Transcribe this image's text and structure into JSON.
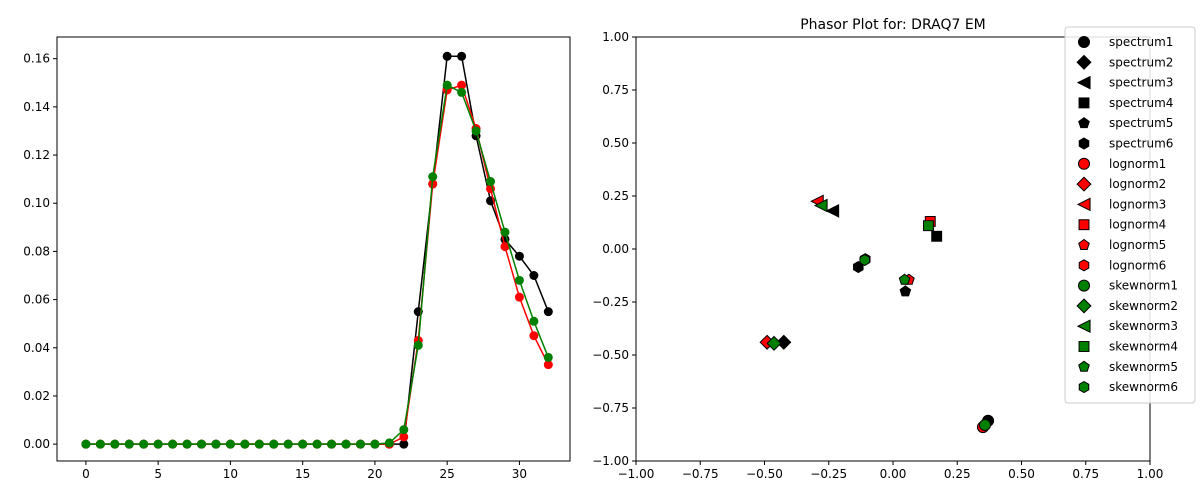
{
  "chart_data": [
    {
      "type": "line",
      "title": "",
      "xlabel": "",
      "ylabel": "",
      "xlim": [
        -2,
        33.5
      ],
      "ylim": [
        -0.007,
        0.169
      ],
      "xticks": [
        0,
        5,
        10,
        15,
        20,
        25,
        30
      ],
      "yticks": [
        0.0,
        0.02,
        0.04,
        0.06,
        0.08,
        0.1,
        0.12,
        0.14,
        0.16
      ],
      "ytick_labels": [
        "0.00",
        "0.02",
        "0.04",
        "0.06",
        "0.08",
        "0.10",
        "0.12",
        "0.14",
        "0.16"
      ],
      "grid": false,
      "x": [
        0,
        1,
        2,
        3,
        4,
        5,
        6,
        7,
        8,
        9,
        10,
        11,
        12,
        13,
        14,
        15,
        16,
        17,
        18,
        19,
        20,
        21,
        22,
        23,
        24,
        25,
        26,
        27,
        28,
        29,
        30,
        31,
        32
      ],
      "series": [
        {
          "color": "#000000",
          "values": [
            0,
            0,
            0,
            0,
            0,
            0,
            0,
            0,
            0,
            0,
            0,
            0,
            0,
            0,
            0,
            0,
            0,
            0,
            0,
            0,
            0,
            0,
            0,
            0.055,
            0.108,
            0.161,
            0.161,
            0.128,
            0.101,
            0.085,
            0.078,
            0.07,
            0.055
          ]
        },
        {
          "color": "#ff0000",
          "values": [
            0,
            0,
            0,
            0,
            0,
            0,
            0,
            0,
            0,
            0,
            0,
            0,
            0,
            0,
            0,
            0,
            0,
            0,
            0,
            0,
            0,
            0,
            0.003,
            0.043,
            0.108,
            0.147,
            0.149,
            0.131,
            0.106,
            0.082,
            0.061,
            0.045,
            0.033
          ]
        },
        {
          "color": "#008000",
          "values": [
            0,
            0,
            0,
            0,
            0,
            0,
            0,
            0,
            0,
            0,
            0,
            0,
            0,
            0,
            0,
            0,
            0,
            0,
            0,
            0,
            0,
            0.0005,
            0.006,
            0.041,
            0.111,
            0.149,
            0.146,
            0.13,
            0.109,
            0.088,
            0.068,
            0.051,
            0.036
          ]
        }
      ]
    },
    {
      "type": "scatter",
      "title": "Phasor Plot for: DRAQ7 EM",
      "xlabel": "",
      "ylabel": "",
      "xlim": [
        -1.0,
        1.0
      ],
      "ylim": [
        -1.0,
        1.0
      ],
      "xticks": [
        -1.0,
        -0.75,
        -0.5,
        -0.25,
        0.0,
        0.25,
        0.5,
        0.75,
        1.0
      ],
      "xtick_labels": [
        "−1.00",
        "−0.75",
        "−0.50",
        "−0.25",
        "0.00",
        "0.25",
        "0.50",
        "0.75",
        "1.00"
      ],
      "yticks": [
        -1.0,
        -0.75,
        -0.5,
        -0.25,
        0.0,
        0.25,
        0.5,
        0.75,
        1.0
      ],
      "ytick_labels": [
        "−1.00",
        "−0.75",
        "−0.50",
        "−0.25",
        "0.00",
        "0.25",
        "0.50",
        "0.75",
        "1.00"
      ],
      "grid": false,
      "legend_position": "top-right",
      "series": [
        {
          "name": "spectrum1",
          "marker": "circle",
          "color": "#000000",
          "points": [
            [
              0.37,
              -0.81
            ]
          ]
        },
        {
          "name": "spectrum2",
          "marker": "diamond",
          "color": "#000000",
          "points": [
            [
              -0.425,
              -0.44
            ]
          ]
        },
        {
          "name": "spectrum3",
          "marker": "triangle-left",
          "color": "#000000",
          "points": [
            [
              -0.235,
              0.18
            ]
          ]
        },
        {
          "name": "spectrum4",
          "marker": "square",
          "color": "#000000",
          "points": [
            [
              0.17,
              0.06
            ]
          ]
        },
        {
          "name": "spectrum5",
          "marker": "pentagon",
          "color": "#000000",
          "points": [
            [
              0.048,
              -0.2
            ]
          ]
        },
        {
          "name": "spectrum6",
          "marker": "hexagon",
          "color": "#000000",
          "points": [
            [
              -0.135,
              -0.085
            ]
          ]
        },
        {
          "name": "lognorm1",
          "marker": "circle",
          "color": "#ff0000",
          "points": [
            [
              0.35,
              -0.84
            ]
          ]
        },
        {
          "name": "lognorm2",
          "marker": "diamond",
          "color": "#ff0000",
          "points": [
            [
              -0.49,
              -0.44
            ]
          ]
        },
        {
          "name": "lognorm3",
          "marker": "triangle-left",
          "color": "#ff0000",
          "points": [
            [
              -0.295,
              0.225
            ]
          ]
        },
        {
          "name": "lognorm4",
          "marker": "square",
          "color": "#ff0000",
          "points": [
            [
              0.145,
              0.13
            ]
          ]
        },
        {
          "name": "lognorm5",
          "marker": "pentagon",
          "color": "#ff0000",
          "points": [
            [
              0.062,
              -0.145
            ]
          ]
        },
        {
          "name": "lognorm6",
          "marker": "hexagon",
          "color": "#ff0000",
          "points": [
            [
              -0.108,
              -0.048
            ]
          ]
        },
        {
          "name": "skewnorm1",
          "marker": "circle",
          "color": "#008000",
          "points": [
            [
              0.358,
              -0.83
            ]
          ]
        },
        {
          "name": "skewnorm2",
          "marker": "diamond",
          "color": "#008000",
          "points": [
            [
              -0.463,
              -0.445
            ]
          ]
        },
        {
          "name": "skewnorm3",
          "marker": "triangle-left",
          "color": "#008000",
          "points": [
            [
              -0.28,
              0.205
            ]
          ]
        },
        {
          "name": "skewnorm4",
          "marker": "square",
          "color": "#008000",
          "points": [
            [
              0.138,
              0.11
            ]
          ]
        },
        {
          "name": "skewnorm5",
          "marker": "pentagon",
          "color": "#008000",
          "points": [
            [
              0.045,
              -0.145
            ]
          ]
        },
        {
          "name": "skewnorm6",
          "marker": "hexagon",
          "color": "#008000",
          "points": [
            [
              -0.11,
              -0.052
            ]
          ]
        }
      ]
    }
  ]
}
